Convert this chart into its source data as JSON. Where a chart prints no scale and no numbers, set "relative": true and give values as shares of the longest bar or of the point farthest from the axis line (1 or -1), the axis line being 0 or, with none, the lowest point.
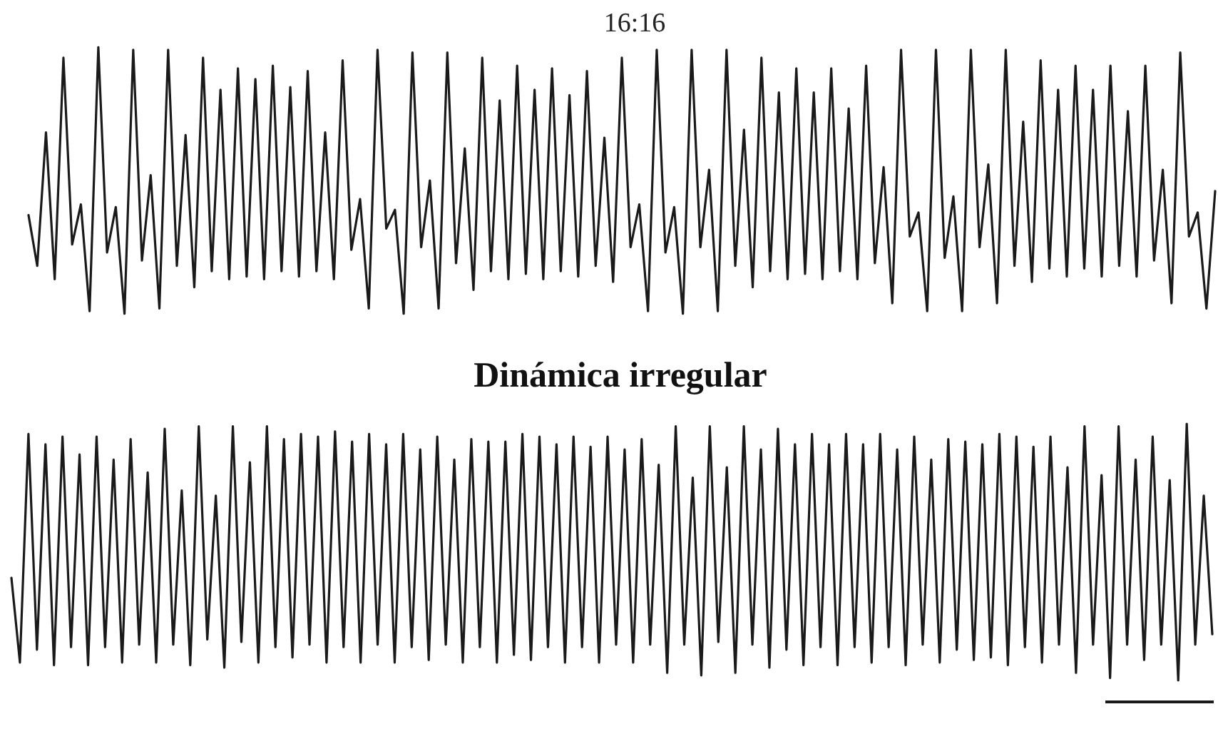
{
  "chart_data": [
    {
      "type": "line",
      "title": "16:16",
      "relative": true,
      "line_style": "solid",
      "categories": [
        null,
        null,
        null,
        null,
        null,
        null,
        null,
        null,
        null,
        null,
        null,
        null,
        null,
        null,
        null,
        null,
        null,
        null,
        null,
        null,
        null,
        null,
        null,
        null,
        null,
        null,
        null,
        null,
        null,
        null,
        null,
        null,
        null,
        null,
        null,
        null,
        null,
        null,
        null,
        null,
        null,
        null,
        null,
        null,
        null,
        null,
        null,
        null,
        null,
        null,
        null,
        null,
        null,
        null,
        null,
        null,
        null,
        null,
        null,
        null,
        null,
        null,
        null,
        null,
        null,
        null,
        null,
        null,
        null,
        null,
        null,
        null,
        null,
        null,
        null,
        null,
        null,
        null,
        null,
        null,
        null,
        null,
        null,
        null,
        null,
        null,
        null,
        null,
        null,
        null,
        null,
        null,
        null,
        null,
        null,
        null,
        null,
        null,
        null,
        null,
        null,
        null,
        null,
        null,
        null,
        null,
        null,
        null,
        null,
        null,
        null,
        null,
        null,
        null,
        null,
        null,
        null,
        null,
        null,
        null,
        null,
        null,
        null,
        null,
        null,
        null,
        null,
        null,
        null,
        null,
        null,
        null,
        null,
        null,
        null,
        null,
        null
      ],
      "series": [
        {
          "color": "#1a1a1a",
          "values": [
            0.37,
            0.18,
            0.68,
            0.13,
            0.96,
            0.26,
            0.41,
            0.01,
            1.0,
            0.23,
            0.4,
            0,
            0.99,
            0.2,
            0.52,
            0.02,
            0.99,
            0.18,
            0.67,
            0.1,
            0.96,
            0.16,
            0.84,
            0.13,
            0.92,
            0.14,
            0.88,
            0.13,
            0.93,
            0.16,
            0.85,
            0.14,
            0.91,
            0.16,
            0.68,
            0.13,
            0.95,
            0.24,
            0.43,
            0.02,
            0.99,
            0.32,
            0.39,
            0,
            0.98,
            0.25,
            0.5,
            0.02,
            0.98,
            0.19,
            0.62,
            0.09,
            0.96,
            0.16,
            0.8,
            0.13,
            0.93,
            0.15,
            0.84,
            0.13,
            0.92,
            0.16,
            0.82,
            0.14,
            0.91,
            0.18,
            0.66,
            0.12,
            0.96,
            0.25,
            0.41,
            0.01,
            0.99,
            0.23,
            0.4,
            0,
            0.99,
            0.25,
            0.54,
            0.01,
            0.99,
            0.18,
            0.69,
            0.1,
            0.96,
            0.16,
            0.83,
            0.13,
            0.92,
            0.15,
            0.83,
            0.13,
            0.92,
            0.16,
            0.77,
            0.13,
            0.93,
            0.19,
            0.55,
            0.04,
            0.99,
            0.29,
            0.38,
            0.01,
            0.99,
            0.21,
            0.44,
            0.01,
            0.99,
            0.25,
            0.56,
            0.04,
            0.99,
            0.18,
            0.72,
            0.12,
            0.95,
            0.17,
            0.84,
            0.14,
            0.93,
            0.17,
            0.84,
            0.14,
            0.93,
            0.18,
            0.76,
            0.14,
            0.93,
            0.2,
            0.54,
            0.04,
            0.98,
            0.29,
            0.38,
            0.02,
            0.46
          ]
        }
      ]
    },
    {
      "type": "line",
      "title": "Dinámica irregular",
      "relative": true,
      "line_style": "solid",
      "categories": [
        null,
        null,
        null,
        null,
        null,
        null,
        null,
        null,
        null,
        null,
        null,
        null,
        null,
        null,
        null,
        null,
        null,
        null,
        null,
        null,
        null,
        null,
        null,
        null,
        null,
        null,
        null,
        null,
        null,
        null,
        null,
        null,
        null,
        null,
        null,
        null,
        null,
        null,
        null,
        null,
        null,
        null,
        null,
        null,
        null,
        null,
        null,
        null,
        null,
        null,
        null,
        null,
        null,
        null,
        null,
        null,
        null,
        null,
        null,
        null,
        null,
        null,
        null,
        null,
        null,
        null,
        null,
        null,
        null,
        null,
        null,
        null,
        null,
        null,
        null,
        null,
        null,
        null,
        null,
        null,
        null,
        null,
        null,
        null,
        null,
        null,
        null,
        null,
        null,
        null,
        null,
        null,
        null,
        null,
        null,
        null,
        null,
        null,
        null,
        null,
        null,
        null,
        null,
        null,
        null,
        null,
        null,
        null,
        null,
        null,
        null,
        null,
        null,
        null,
        null,
        null,
        null,
        null,
        null,
        null,
        null,
        null,
        null,
        null,
        null,
        null,
        null,
        null,
        null,
        null,
        null,
        null,
        null,
        null,
        null,
        null,
        null,
        null,
        null,
        null,
        null,
        null
      ],
      "series": [
        {
          "color": "#1a1a1a",
          "values": [
            0.4,
            0.07,
            0.96,
            0.12,
            0.92,
            0.06,
            0.95,
            0.13,
            0.88,
            0.06,
            0.95,
            0.13,
            0.86,
            0.07,
            0.94,
            0.14,
            0.81,
            0.07,
            0.98,
            0.14,
            0.74,
            0.06,
            0.99,
            0.16,
            0.72,
            0.05,
            0.99,
            0.15,
            0.85,
            0.07,
            0.99,
            0.13,
            0.94,
            0.09,
            0.96,
            0.14,
            0.95,
            0.07,
            0.97,
            0.13,
            0.93,
            0.07,
            0.96,
            0.14,
            0.92,
            0.07,
            0.96,
            0.13,
            0.9,
            0.08,
            0.95,
            0.14,
            0.86,
            0.07,
            0.94,
            0.13,
            0.93,
            0.07,
            0.93,
            0.1,
            0.96,
            0.08,
            0.95,
            0.13,
            0.92,
            0.07,
            0.95,
            0.13,
            0.91,
            0.07,
            0.95,
            0.14,
            0.9,
            0.07,
            0.94,
            0.14,
            0.84,
            0.03,
            0.99,
            0.14,
            0.79,
            0.02,
            0.99,
            0.15,
            0.83,
            0.03,
            0.99,
            0.14,
            0.9,
            0.05,
            0.98,
            0.12,
            0.92,
            0.06,
            0.96,
            0.13,
            0.92,
            0.06,
            0.96,
            0.13,
            0.92,
            0.07,
            0.96,
            0.13,
            0.9,
            0.06,
            0.95,
            0.14,
            0.86,
            0.07,
            0.94,
            0.12,
            0.93,
            0.08,
            0.92,
            0.09,
            0.96,
            0.06,
            0.95,
            0.13,
            0.91,
            0.07,
            0.95,
            0.14,
            0.83,
            0.03,
            0.99,
            0.14,
            0.8,
            0.01,
            0.99,
            0.14,
            0.86,
            0.08,
            0.95,
            0.14,
            0.78,
            0,
            1,
            0.14,
            0.72,
            0.18
          ]
        }
      ]
    }
  ]
}
